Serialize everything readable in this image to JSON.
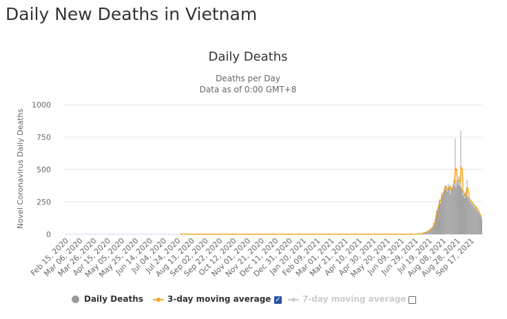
{
  "page": {
    "title": "Daily New Deaths in Vietnam"
  },
  "chart_data": {
    "type": "bar",
    "title": "Daily Deaths",
    "subtitle_line1": "Deaths per Day",
    "subtitle_line2": "Data as of 0:00 GMT+8",
    "ylabel": "Novel Coronavirus Daily Deaths",
    "xlabel": "",
    "ylim": [
      0,
      1000
    ],
    "yticks": [
      0,
      250,
      500,
      750,
      1000
    ],
    "start_date": "2020-02-15",
    "end_date": "2021-10-03",
    "x_tick_labels": [
      "Feb 15, 2020",
      "Mar 06, 2020",
      "Mar 26, 2020",
      "Apr 15, 2020",
      "May 05, 2020",
      "May 25, 2020",
      "Jun 14, 2020",
      "Jul 04, 2020",
      "Jul 24, 2020",
      "Aug 13, 2020",
      "Sep 02, 2020",
      "Sep 22, 2020",
      "Oct 12, 2020",
      "Nov 01, 2020",
      "Nov 21, 2020",
      "Dec 11, 2020",
      "Dec 31, 2020",
      "Jan 20, 2021",
      "Feb 09, 2021",
      "Mar 01, 2021",
      "Mar 21, 2021",
      "Apr 10, 2021",
      "Apr 30, 2021",
      "May 20, 2021",
      "Jun 09, 2021",
      "Jun 29, 2021",
      "Jul 19, 2021",
      "Aug 08, 2021",
      "Aug 28, 2021",
      "Sep 17, 2021"
    ],
    "series": [
      {
        "name": "Daily Deaths",
        "color": "#999999",
        "note": "values from Jul 01, 2021 onward (day by day); earlier values are 0 except sporadic small counts",
        "start": "2021-07-01",
        "values": [
          2,
          1,
          3,
          5,
          2,
          4,
          3,
          2,
          6,
          8,
          10,
          12,
          14,
          15,
          17,
          20,
          25,
          30,
          25,
          35,
          40,
          45,
          50,
          55,
          65,
          85,
          90,
          120,
          150,
          180,
          190,
          210,
          230,
          260,
          270,
          240,
          300,
          320,
          290,
          330,
          350,
          370,
          380,
          360,
          340,
          330,
          390,
          350,
          370,
          310,
          380,
          340,
          360,
          390,
          420,
          380,
          740,
          360,
          410,
          430,
          380,
          450,
          400,
          370,
          800,
          360,
          340,
          300,
          310,
          280,
          330,
          300,
          360,
          420,
          290,
          280,
          260,
          250,
          270,
          240,
          230,
          250,
          220,
          200,
          230,
          210,
          190,
          180,
          200,
          170,
          160,
          150,
          140,
          130,
          120
        ]
      },
      {
        "name": "3-day moving average",
        "color": "#f5a623"
      },
      {
        "name": "7-day moving average",
        "color": "#cccccc",
        "visible": false
      }
    ],
    "legend": [
      {
        "label": "Daily Deaths",
        "checked": null
      },
      {
        "label": "3-day moving average",
        "checked": true
      },
      {
        "label": "7-day moving average",
        "checked": false
      }
    ]
  }
}
